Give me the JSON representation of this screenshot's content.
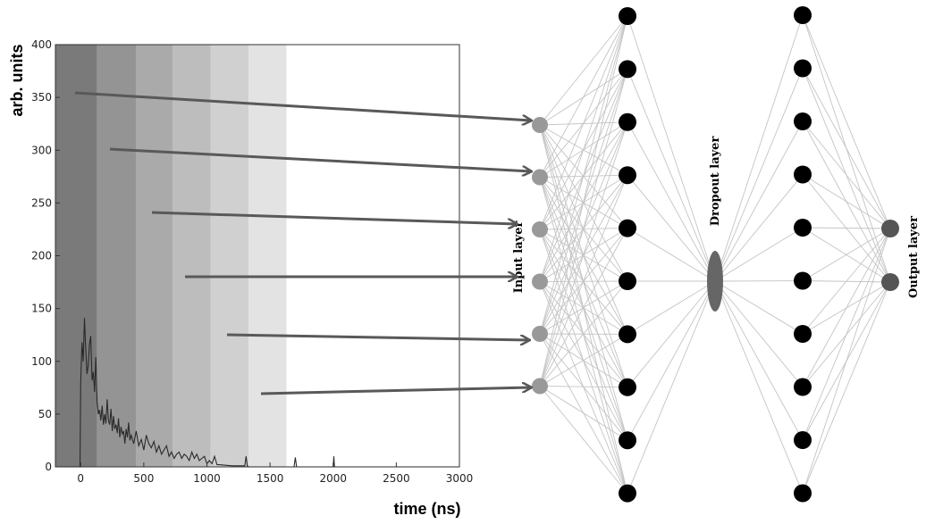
{
  "chart_data": {
    "type": "line",
    "ylabel": "arb. units",
    "xlabel": "time (ns)",
    "xlim": [
      -200,
      3000
    ],
    "ylim": [
      0,
      400
    ],
    "x_ticks": [
      "0",
      "500",
      "1000",
      "1500",
      "2000",
      "2500",
      "3000"
    ],
    "x_tick_values": [
      0,
      500,
      1000,
      1500,
      2000,
      2500,
      3000
    ],
    "y_ticks": [
      "0",
      "50",
      "100",
      "150",
      "200",
      "250",
      "300",
      "350",
      "400"
    ],
    "y_tick_values": [
      0,
      50,
      100,
      150,
      200,
      250,
      300,
      350,
      400
    ],
    "bands": [
      {
        "from": -200,
        "to": 130,
        "color": "#7a7a7a"
      },
      {
        "from": 130,
        "to": 440,
        "color": "#949494"
      },
      {
        "from": 440,
        "to": 730,
        "color": "#aaaaaa"
      },
      {
        "from": 730,
        "to": 1030,
        "color": "#bdbdbd"
      },
      {
        "from": 1030,
        "to": 1330,
        "color": "#d0d0d0"
      },
      {
        "from": 1330,
        "to": 1630,
        "color": "#e3e3e3"
      }
    ],
    "series": [
      {
        "x": [
          -200,
          -5,
          0,
          10,
          20,
          30,
          40,
          50,
          60,
          70,
          80,
          90,
          100,
          110,
          120,
          130,
          140,
          150,
          160,
          170,
          180,
          190,
          200,
          210,
          220,
          230,
          240,
          250,
          260,
          270,
          280,
          290,
          300,
          310,
          320,
          330,
          340,
          350,
          360,
          370,
          380,
          390,
          400,
          420,
          440,
          460,
          480,
          500,
          520,
          540,
          560,
          580,
          600,
          620,
          640,
          660,
          680,
          700,
          720,
          740,
          760,
          780,
          800,
          820,
          840,
          860,
          880,
          900,
          920,
          940,
          960,
          980,
          1000,
          1020,
          1040,
          1060,
          1080,
          1100,
          1200,
          1300,
          1310,
          1320,
          1330,
          1400,
          1500,
          1600,
          1690,
          1700,
          1710,
          1800,
          1900,
          2000,
          2005,
          2010,
          2100,
          2500,
          3000
        ],
        "y": [
          0,
          0,
          80,
          118,
          100,
          141,
          112,
          88,
          96,
          116,
          124,
          82,
          90,
          71,
          104,
          62,
          50,
          54,
          44,
          58,
          40,
          50,
          41,
          64,
          44,
          40,
          55,
          34,
          48,
          36,
          40,
          32,
          46,
          28,
          38,
          31,
          34,
          22,
          36,
          28,
          42,
          25,
          30,
          22,
          34,
          20,
          26,
          16,
          30,
          22,
          18,
          24,
          14,
          20,
          12,
          16,
          20,
          10,
          14,
          8,
          12,
          14,
          8,
          12,
          10,
          6,
          14,
          8,
          12,
          6,
          8,
          10,
          3,
          6,
          3,
          10,
          2,
          2,
          1,
          1,
          10,
          1,
          0,
          0,
          0,
          0,
          0,
          9,
          0,
          0,
          0,
          0,
          10,
          0,
          0,
          0,
          0
        ]
      }
    ],
    "grid": false
  },
  "network": {
    "input_label": "Input layer",
    "dropout_label": "Dropout layer",
    "output_label": "Output layer",
    "input_count": 6,
    "hidden1_count": 10,
    "hidden2_count": 10,
    "output_count": 2,
    "colors": {
      "input_node": "#999999",
      "hidden_node": "#000000",
      "output_node": "#555555",
      "dropout_node": "#666666",
      "edge": "#c4c4c4",
      "arrow": "#595959"
    }
  }
}
